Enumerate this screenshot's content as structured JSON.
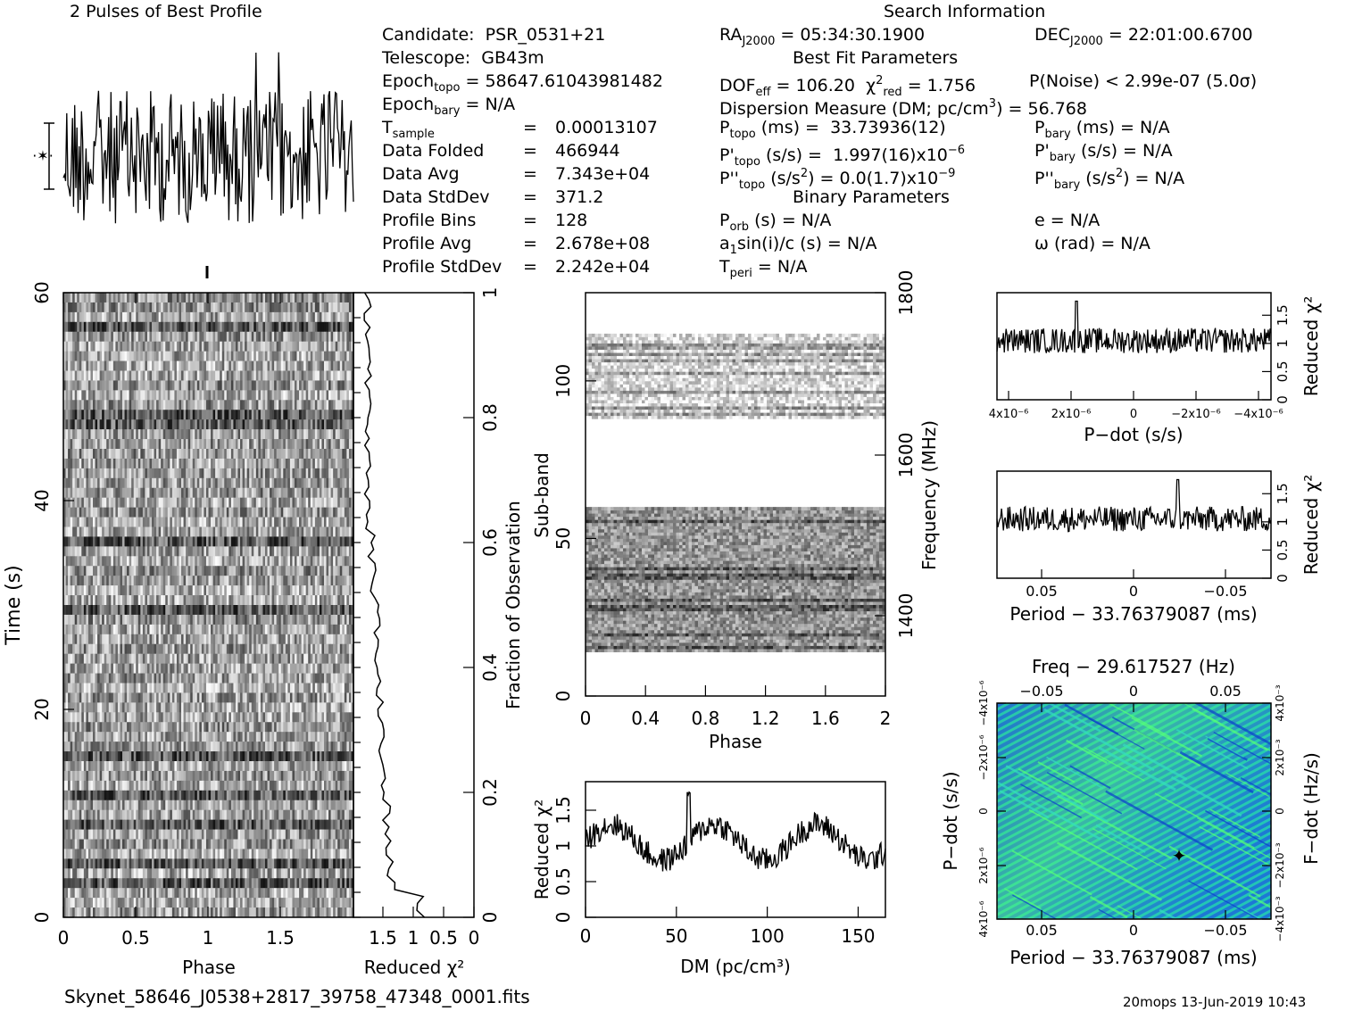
{
  "profile_title": "2 Pulses of Best Profile",
  "search_title": "Search Information",
  "best_fit_title": "Best Fit Parameters",
  "binary_title": "Binary Parameters",
  "candidate": {
    "label": "Candidate:",
    "value": "PSR_0531+21"
  },
  "telescope": {
    "label": "Telescope:",
    "value": "GB43m"
  },
  "epoch_topo": {
    "label": "Epoch",
    "sub": "topo",
    "value": "= 58647.61043981482"
  },
  "epoch_bary": {
    "label": "Epoch",
    "sub": "bary",
    "value": "= N/A"
  },
  "stats": [
    {
      "label": "T",
      "sub": "sample",
      "eq": "=",
      "value": "0.00013107"
    },
    {
      "label": "Data Folded",
      "sub": "",
      "eq": "=",
      "value": "466944"
    },
    {
      "label": "Data Avg",
      "sub": "",
      "eq": "=",
      "value": "7.343e+04"
    },
    {
      "label": "Data StdDev",
      "sub": "",
      "eq": "=",
      "value": "371.2"
    },
    {
      "label": "Profile Bins",
      "sub": "",
      "eq": "=",
      "value": "128"
    },
    {
      "label": "Profile Avg",
      "sub": "",
      "eq": "=",
      "value": "2.678e+08"
    },
    {
      "label": "Profile StdDev",
      "sub": "",
      "eq": "=",
      "value": "2.242e+04"
    }
  ],
  "ra": {
    "label": "RA",
    "sub": "J2000",
    "value": "= 05:34:30.1900"
  },
  "dec": {
    "label": "DEC",
    "sub": "J2000",
    "value": "= 22:01:00.6700"
  },
  "dof": {
    "label": "DOF",
    "sub": "eff",
    "value": "= 106.20"
  },
  "chi2": {
    "label": "χ",
    "sup": "2",
    "sub": "red",
    "value": "= 1.756"
  },
  "pnoise": {
    "value": "P(Noise) < 2.99e-07   (5.0σ)"
  },
  "dm_line": {
    "pre": "Dispersion Measure (DM; pc/cm",
    "sup": "3",
    "post": ") = 56.768"
  },
  "p_topo": {
    "label": "P",
    "sub": "topo",
    "mid": " (ms) =",
    "value": "33.73936(12)"
  },
  "p_bary": {
    "label": "P",
    "sub": "bary",
    "mid": " (ms) =",
    "value": "N/A"
  },
  "pd_topo": {
    "label": "P'",
    "sub": "topo",
    "mid": " (s/s) =",
    "value": "1.997(16)x10",
    "sup": "−6"
  },
  "pd_bary": {
    "label": "P'",
    "sub": "bary",
    "mid": " (s/s) =",
    "value": "N/A"
  },
  "pdd_topo": {
    "label": "P''",
    "sub": "topo",
    "mid": " (s/s",
    "sup": "2",
    "mid2": ") =",
    "value": "0.0(1.7)x10",
    "sup2": "−9"
  },
  "pdd_bary": {
    "label": "P''",
    "sub": "bary",
    "mid": " (s/s",
    "sup": "2",
    "mid2": ") =",
    "value": "N/A"
  },
  "porb": {
    "label": "P",
    "sub": "orb",
    "value": " (s) = N/A"
  },
  "a1": {
    "label": "a",
    "sub": "1",
    "value": "sin(i)/c (s) = N/A"
  },
  "tperi": {
    "label": "T",
    "sub": "peri",
    "value": " = N/A"
  },
  "ecc": {
    "value": "e = N/A"
  },
  "omega": {
    "value": "ω (rad) = N/A"
  },
  "filename": "Skynet_58646_J0538+2817_39758_47348_0001.fits",
  "footer_stamp": "20mops 13-Jun-2019 10:43",
  "colors": {
    "ink": "#000000",
    "grid_low": "#2244dd",
    "grid_high": "#22ee88",
    "grid_mid": "#22aacc",
    "marker": "#000000"
  },
  "chart_data": [
    {
      "id": "profile",
      "type": "line",
      "title": "2 Pulses of Best Profile",
      "xlim": [
        0,
        2
      ],
      "points": 256,
      "description": "noisy pulse profile, two turns"
    },
    {
      "id": "time-phase",
      "type": "heatmap",
      "xlabel": "Phase",
      "ylabel": "Time (s)",
      "xlim": [
        0,
        2
      ],
      "ylim": [
        0,
        60
      ],
      "xticks": [
        "0",
        "0.5",
        "1",
        "1.5"
      ],
      "yticks": [
        "0",
        "20",
        "40",
        "60"
      ]
    },
    {
      "id": "time-chi2",
      "type": "line",
      "xlabel": "Reduced χ²",
      "ylabel": "Fraction of Observation",
      "xticks": [
        "1.5",
        "1",
        "0.5",
        "0"
      ],
      "yticks": [
        "0",
        "0.2",
        "0.4",
        "0.6",
        "0.8",
        "1"
      ],
      "x_reversed": true,
      "xlim": [
        2,
        0
      ],
      "ylim": [
        0,
        1
      ]
    },
    {
      "id": "subband-phase",
      "type": "heatmap",
      "xlabel": "Phase",
      "ylabel": "Sub-band",
      "y2label": "Frequency (MHz)",
      "xlim": [
        0,
        2
      ],
      "ylim": [
        0,
        128
      ],
      "xticks": [
        "0",
        "0.4",
        "0.8",
        "1.2",
        "1.6",
        "2"
      ],
      "yticks": [
        "0",
        "50",
        "100"
      ],
      "y2ticks": [
        "1400",
        "1600",
        "1800"
      ],
      "bands": [
        {
          "from": 14,
          "to": 60
        },
        {
          "from": 88,
          "to": 115
        }
      ]
    },
    {
      "id": "dm-chi2",
      "type": "line",
      "xlabel": "DM (pc/cm³)",
      "ylabel": "Reduced χ²",
      "xlim": [
        0,
        165
      ],
      "ylim": [
        0,
        1.9
      ],
      "xticks": [
        "0",
        "50",
        "100",
        "150"
      ],
      "yticks": [
        "0",
        "0.5",
        "1",
        "1.5"
      ],
      "peak_x": 56.768,
      "peak_y": 1.8
    },
    {
      "id": "pdot-chi2",
      "type": "line",
      "xlabel": "P−dot (s/s)",
      "ylabel": "Reduced χ²",
      "xticks": [
        "4x10⁻⁶",
        "2x10⁻⁶",
        "0",
        "−2x10⁻⁶",
        "−4x10⁻⁶"
      ],
      "yticks": [
        "0",
        "0.5",
        "1",
        "1.5"
      ],
      "ylim": [
        0,
        1.9
      ]
    },
    {
      "id": "period-chi2",
      "type": "line",
      "xlabel": "Period − 33.76379087 (ms)",
      "ylabel": "Reduced χ²",
      "xticks": [
        "0.05",
        "0",
        "−0.05"
      ],
      "yticks": [
        "0",
        "0.5",
        "1",
        "1.5"
      ],
      "ylim": [
        0,
        1.9
      ]
    },
    {
      "id": "ppdot",
      "type": "heatmap",
      "title": "Freq − 29.617527 (Hz)",
      "xlabel": "Period − 33.76379087 (ms)",
      "ylabel": "P−dot (s/s)",
      "y2label": "F−dot (Hz/s)",
      "top_ticks": [
        "−0.05",
        "0",
        "0.05"
      ],
      "xticks": [
        "0.05",
        "0",
        "−0.05"
      ],
      "yticks": [
        "4x10⁻⁶",
        "2x10⁻⁶",
        "0",
        "−2x10⁻⁶",
        "−4x10⁻⁶"
      ],
      "y2ticks": [
        "−4x10⁻³",
        "−2x10⁻³",
        "0",
        "2x10⁻³",
        "4x10⁻³"
      ],
      "best": {
        "period": -0.024,
        "pdot": 2e-06
      }
    }
  ]
}
